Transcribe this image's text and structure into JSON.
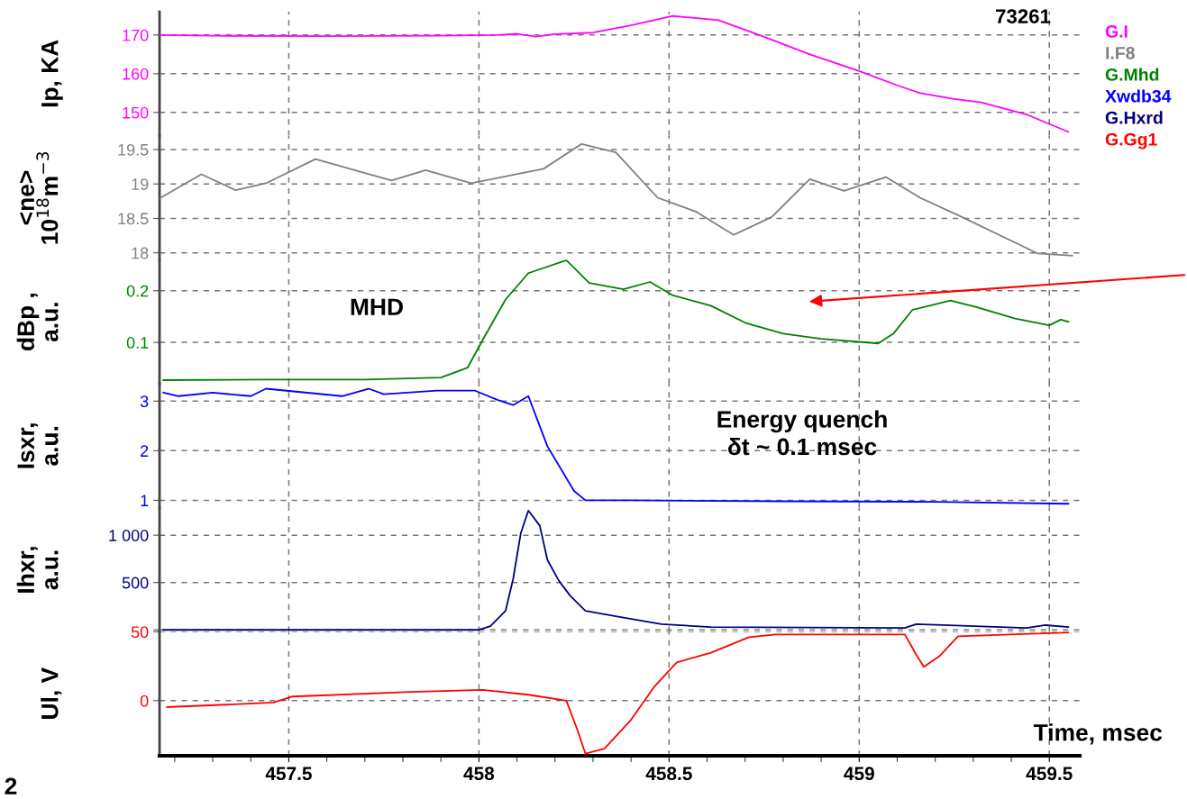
{
  "chart_data": [
    {
      "type": "line",
      "ylabel": "Ip, KA",
      "annotations": [
        "73261"
      ],
      "legend": "top right",
      "grid": true,
      "tick_labels": "y",
      "xlim": [
        457.16,
        459.58
      ],
      "xticks": [
        457.5,
        458,
        458.5,
        459,
        459.5
      ],
      "ylim": [
        144,
        176
      ],
      "yticks": [
        150,
        160,
        170
      ],
      "series": [
        {
          "name": "G.I",
          "color": "#ff00ff",
          "x": [
            457.16,
            457.3,
            457.6,
            457.9,
            458.05,
            458.1,
            458.15,
            458.2,
            458.3,
            458.4,
            458.51,
            458.63,
            458.75,
            458.87,
            459.0,
            459.1,
            459.16,
            459.25,
            459.32,
            459.44,
            459.55
          ],
          "values": [
            170,
            169.8,
            169.7,
            169.8,
            170,
            170.3,
            169.6,
            170.2,
            170.6,
            172.5,
            174.9,
            173.8,
            169.5,
            165,
            160.7,
            157,
            155,
            153.5,
            152.6,
            149.5,
            145
          ]
        }
      ]
    },
    {
      "type": "line",
      "ylabel": "<ne>\n10$^{18}$m$^{−3}$",
      "legend": "top right",
      "grid": true,
      "tick_labels": "y",
      "xlim": [
        457.16,
        459.58
      ],
      "xticks": [
        457.5,
        458,
        458.5,
        459,
        459.5
      ],
      "ylim": [
        17.9,
        19.7
      ],
      "yticks": [
        18,
        18.5,
        19,
        19.5
      ],
      "series": [
        {
          "name": "I.F8",
          "color": "#808080",
          "x": [
            457.16,
            457.27,
            457.36,
            457.44,
            457.57,
            457.77,
            457.86,
            457.98,
            458.17,
            458.27,
            458.36,
            458.47,
            458.57,
            458.67,
            458.77,
            458.87,
            458.96,
            459.07,
            459.16,
            459.27,
            459.47,
            459.56
          ],
          "values": [
            18.79,
            19.14,
            18.91,
            19.01,
            19.36,
            19.05,
            19.2,
            19.01,
            19.22,
            19.58,
            19.46,
            18.8,
            18.6,
            18.26,
            18.52,
            19.07,
            18.9,
            19.1,
            18.8,
            18.52,
            17.99,
            17.96
          ]
        }
      ]
    },
    {
      "type": "line",
      "ylabel": "dBp ,\na.u.",
      "annotations": [
        "MHD"
      ],
      "legend": "top right",
      "grid": true,
      "tick_labels": "y",
      "xlim": [
        457.16,
        459.58
      ],
      "xticks": [
        457.5,
        458,
        458.5,
        459,
        459.5
      ],
      "ylim": [
        0.02,
        0.26
      ],
      "yticks": [
        0.1,
        0.2
      ],
      "series": [
        {
          "name": "G.Mhd",
          "color": "#008000",
          "x": [
            457.17,
            457.44,
            457.7,
            457.9,
            457.97,
            458.01,
            458.07,
            458.13,
            458.23,
            458.29,
            458.38,
            458.45,
            458.51,
            458.61,
            458.7,
            458.8,
            458.9,
            459.05,
            459.09,
            459.14,
            459.24,
            459.31,
            459.41,
            459.5,
            459.53,
            459.55
          ],
          "values": [
            0.027,
            0.028,
            0.028,
            0.032,
            0.051,
            0.105,
            0.183,
            0.234,
            0.259,
            0.215,
            0.203,
            0.217,
            0.191,
            0.171,
            0.138,
            0.117,
            0.107,
            0.098,
            0.117,
            0.163,
            0.181,
            0.168,
            0.146,
            0.133,
            0.144,
            0.14
          ]
        }
      ]
    },
    {
      "type": "line",
      "ylabel": "Isxr,\na.u.",
      "annotations": [
        "Energy quench\nδt ~ 0.1 msec"
      ],
      "legend": "top right",
      "grid": true,
      "tick_labels": "y",
      "xlim": [
        457.16,
        459.58
      ],
      "xticks": [
        457.5,
        458,
        458.5,
        459,
        459.5
      ],
      "ylim": [
        0.85,
        3.35
      ],
      "yticks": [
        1,
        2,
        3
      ],
      "series": [
        {
          "name": "Xwdb34",
          "color": "#0000ff",
          "x": [
            457.17,
            457.21,
            457.3,
            457.4,
            457.44,
            457.64,
            457.71,
            457.75,
            457.89,
            457.99,
            458.05,
            458.09,
            458.13,
            458.18,
            458.25,
            458.28,
            458.4,
            458.8,
            459.2,
            459.55
          ],
          "values": [
            3.17,
            3.1,
            3.17,
            3.1,
            3.25,
            3.1,
            3.25,
            3.14,
            3.21,
            3.21,
            3.02,
            2.92,
            3.1,
            2.09,
            1.19,
            1.0,
            1.0,
            0.98,
            0.97,
            0.93
          ]
        }
      ]
    },
    {
      "type": "line",
      "ylabel": "Ihxr,\na.u.",
      "legend": "top right",
      "grid": true,
      "tick_labels": "y",
      "xlim": [
        457.16,
        459.58
      ],
      "xticks": [
        457.5,
        458,
        458.5,
        459,
        459.5
      ],
      "ylim": [
        -20,
        1290
      ],
      "yticks": [
        {
          "value": 0,
          "label": null
        },
        500,
        {
          "value": 1000,
          "label": "1 000"
        }
      ],
      "series": [
        {
          "name": "G.Hxrd",
          "color": "#000080",
          "x": [
            457.17,
            458.0,
            458.03,
            458.07,
            458.09,
            458.11,
            458.13,
            458.16,
            458.18,
            458.21,
            458.24,
            458.28,
            458.38,
            458.48,
            458.61,
            459.12,
            459.15,
            459.44,
            459.49,
            459.55
          ],
          "values": [
            0,
            0,
            40,
            200,
            540,
            1020,
            1260,
            1100,
            740,
            520,
            360,
            200,
            130,
            60,
            30,
            20,
            60,
            20,
            50,
            30
          ]
        }
      ]
    },
    {
      "type": "line",
      "ylabel": "Ul, V",
      "xlabel": "Time, msec",
      "annotations": [
        "2"
      ],
      "legend": "top right",
      "grid": true,
      "xlim": [
        457.16,
        459.58
      ],
      "xticks": [
        457.5,
        458,
        458.5,
        459,
        459.5
      ],
      "ylim": [
        -40,
        50
      ],
      "yticks": [
        0,
        50
      ],
      "series": [
        {
          "name": "G.Gg1",
          "color": "#ff0000",
          "x": [
            457.18,
            457.46,
            457.51,
            457.82,
            458.01,
            458.13,
            458.23,
            458.26,
            458.28,
            458.33,
            458.4,
            458.46,
            458.52,
            458.61,
            458.71,
            458.78,
            459.12,
            459.15,
            459.17,
            459.21,
            459.26,
            459.55
          ],
          "values": [
            -4.7,
            -1.4,
            3,
            6.3,
            7.8,
            4.3,
            0,
            -22,
            -38.5,
            -34.8,
            -13.9,
            9.7,
            27.8,
            34.8,
            46,
            48,
            48,
            33.4,
            24.5,
            32,
            46.7,
            49.5
          ]
        }
      ]
    }
  ]
}
